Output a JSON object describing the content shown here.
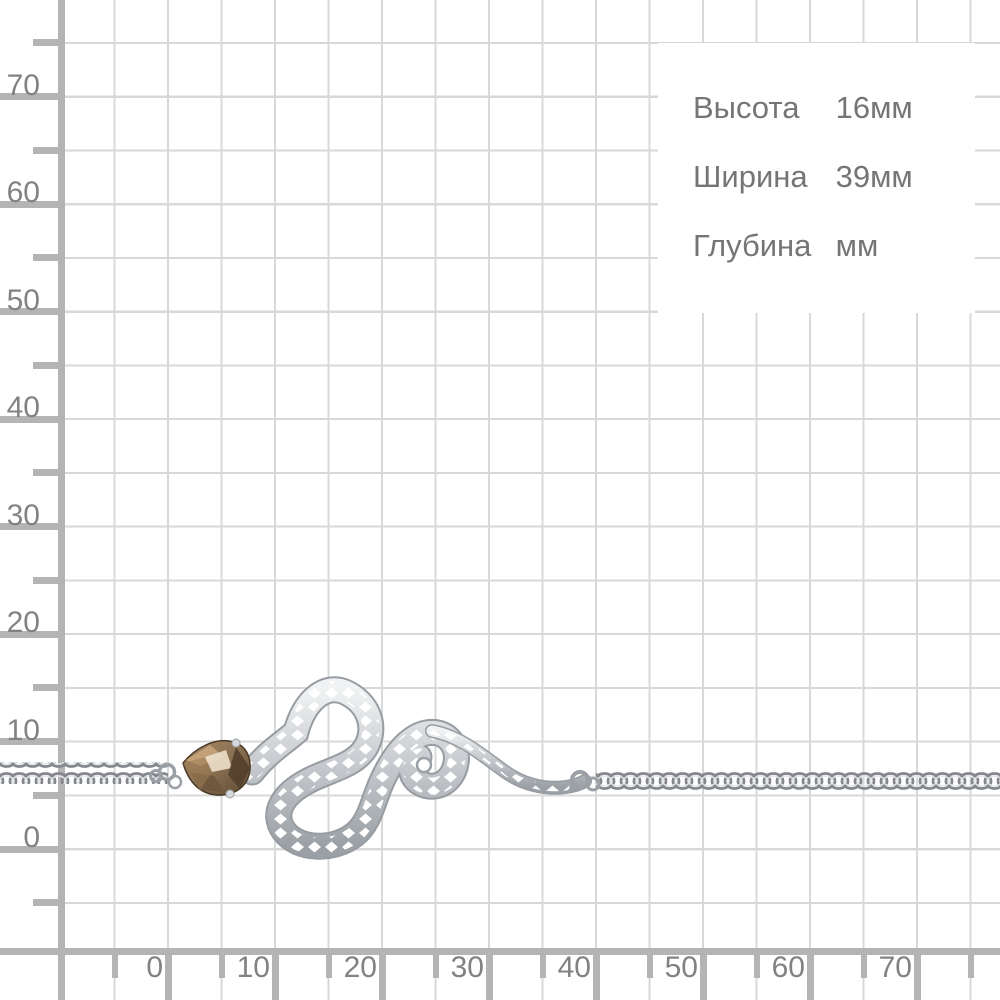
{
  "panel": {
    "rows": [
      {
        "id": "height",
        "label": "Высота",
        "value": "16мм"
      },
      {
        "id": "width",
        "label": "Ширина",
        "value": "39мм"
      },
      {
        "id": "depth",
        "label": "Глубина",
        "value": "мм"
      }
    ]
  },
  "ruler": {
    "y_labels": [
      "70",
      "60",
      "50",
      "40",
      "30",
      "20",
      "10",
      "0"
    ],
    "x_labels": [
      "0",
      "10",
      "20",
      "30",
      "40",
      "50",
      "60",
      "70"
    ],
    "unit": "мм",
    "minor_step_mm": 5,
    "major_step_mm": 10
  },
  "colors": {
    "background": "#ffffff",
    "grid_line": "#d8d8d8",
    "ruler": "#b4b4b4",
    "axis_text": "#828282",
    "panel_text": "#757575",
    "silver_light": "#eef0f2",
    "silver_base": "#c9ccd0",
    "silver_dark": "#979ca2",
    "gem_brown": "#8a7052",
    "gem_dark": "#53402c",
    "gem_highlight": "#ecdfca"
  }
}
